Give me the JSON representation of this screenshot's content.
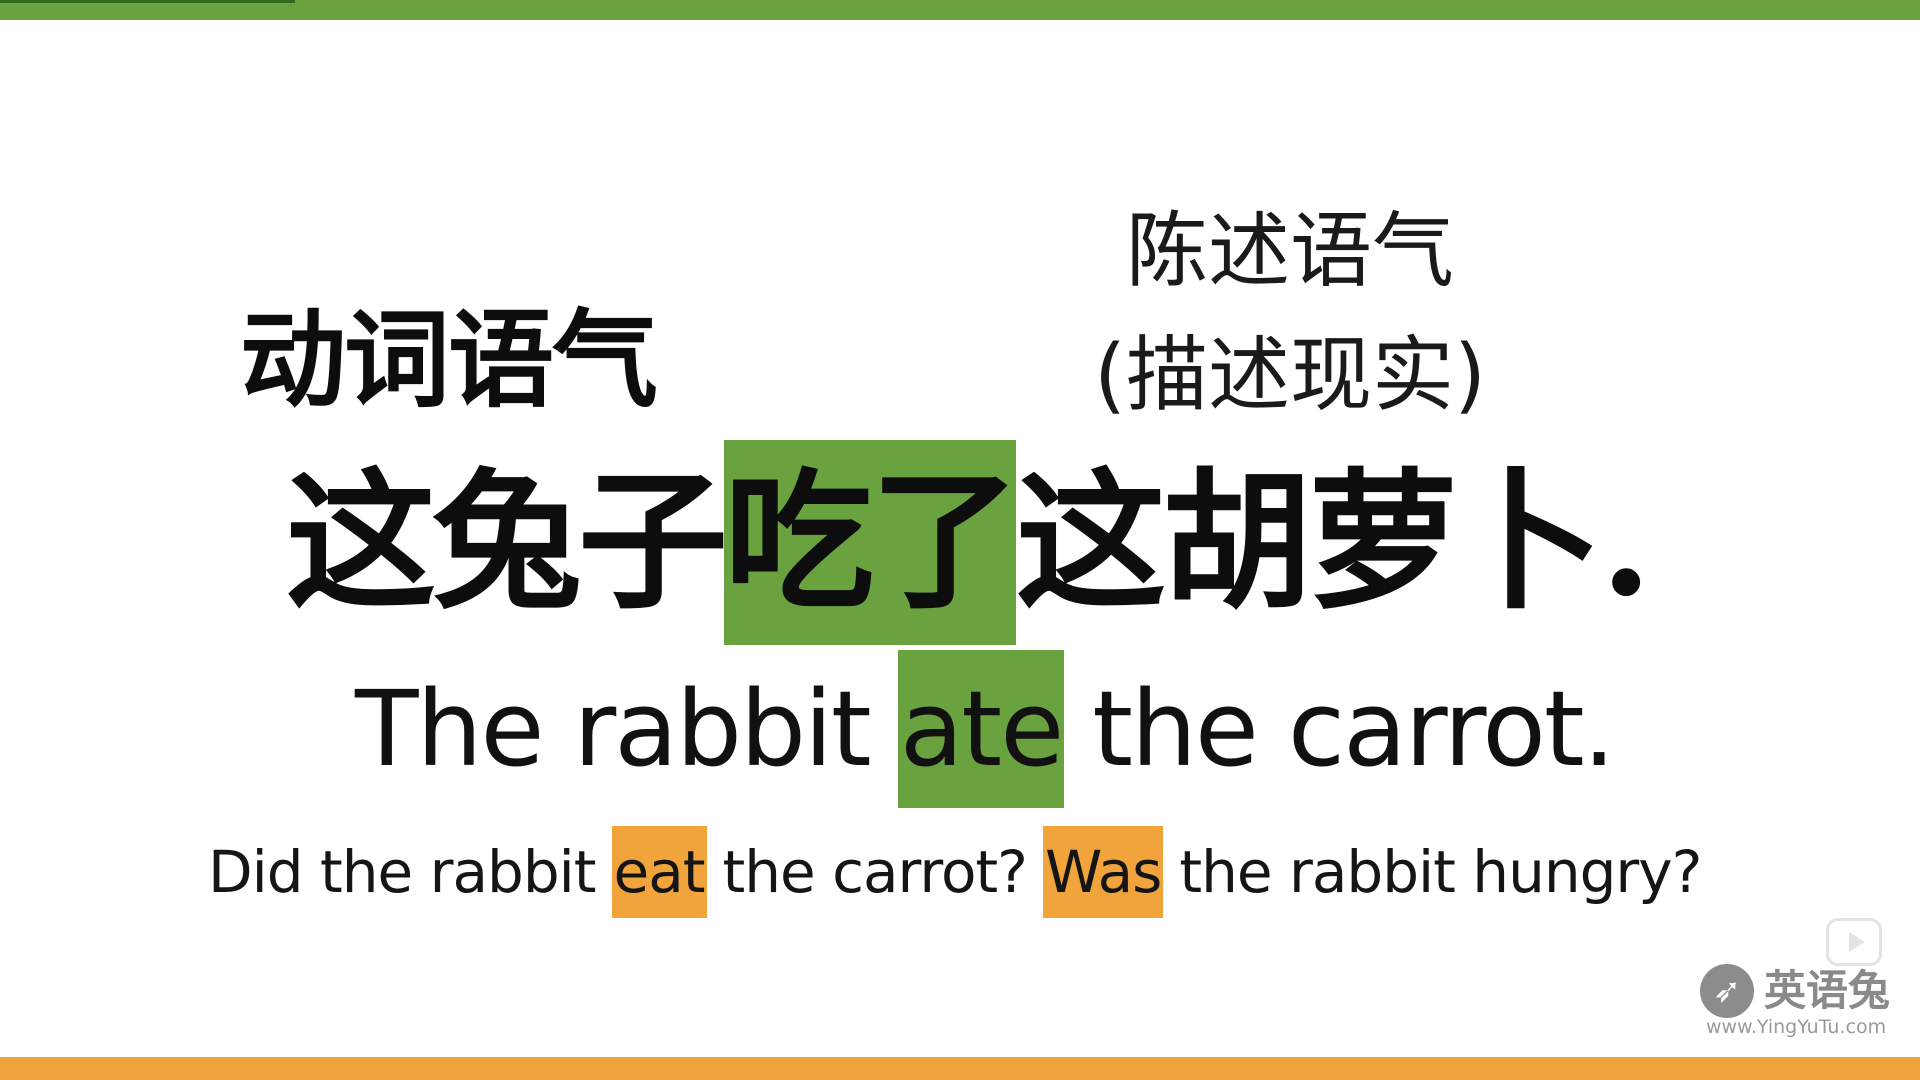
{
  "slide": {
    "mood_label": "动词语气",
    "indicative_title": "陈述语气",
    "indicative_desc": "(描述现实)",
    "chinese_sentence": {
      "part1": "这兔子",
      "highlight": "吃了",
      "part2": "这胡萝卜."
    },
    "english_sentence": {
      "part1": "The rabbit",
      "highlight": "ate",
      "part2": "the carrot."
    },
    "questions": {
      "q1_part1": "Did the rabbit",
      "q1_highlight": "eat",
      "q1_part2": "the carrot?",
      "q2_highlight": "Was",
      "q2_part2": "the rabbit hungry?"
    }
  },
  "watermark": {
    "name": "英语兔",
    "url": "www.YingYuTu.com"
  },
  "colors": {
    "green": "#6aa240",
    "orange": "#f1a33c"
  },
  "icons": {
    "play": "play-icon",
    "logo": "rabbit-logo-icon"
  }
}
